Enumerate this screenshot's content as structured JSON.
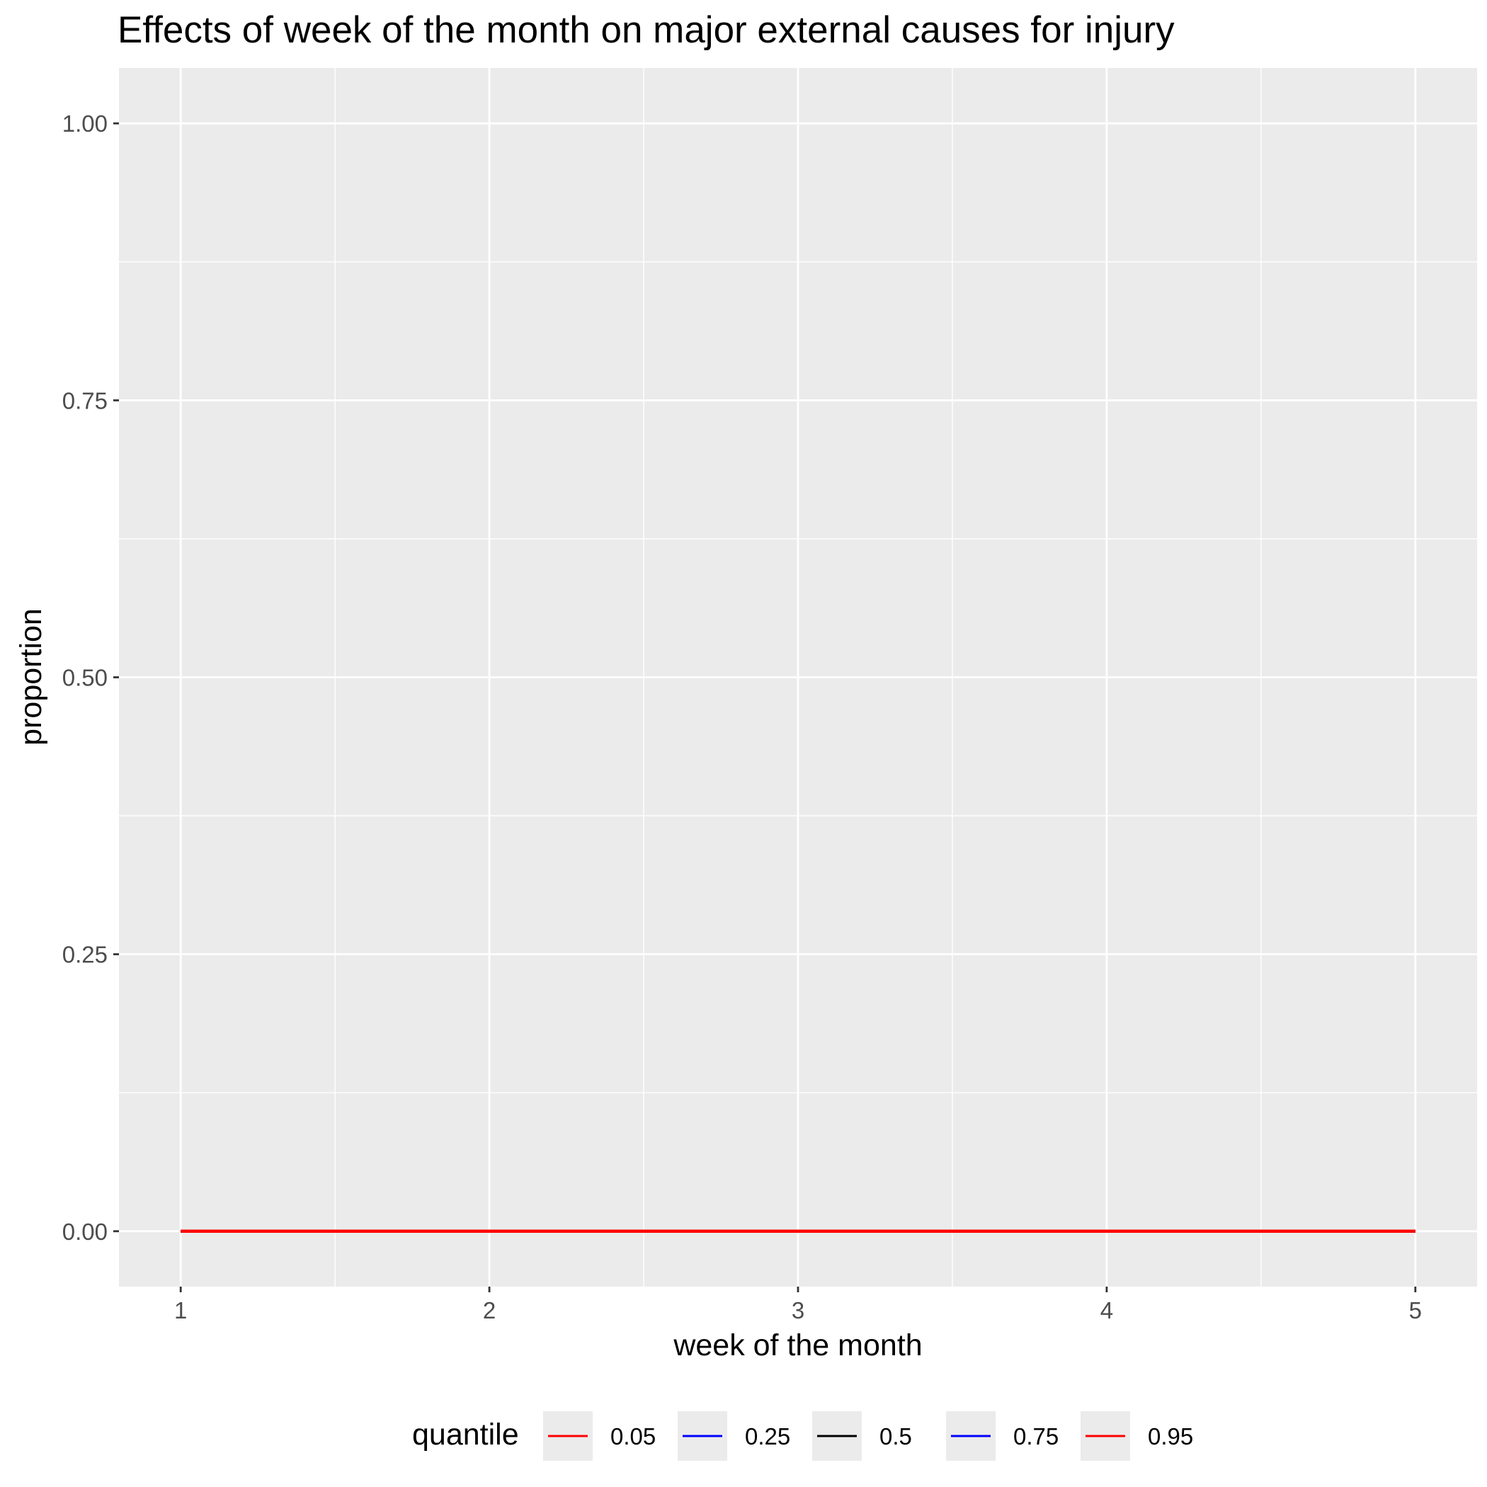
{
  "chart_data": {
    "type": "line",
    "title": "Effects of week of the month on major external causes for injury",
    "xlabel": "week of the month",
    "ylabel": "proportion",
    "x": [
      1,
      2,
      3,
      4,
      5
    ],
    "x_ticks": [
      "1",
      "2",
      "3",
      "4",
      "5"
    ],
    "y_ticks": [
      "0.00",
      "0.25",
      "0.50",
      "0.75",
      "1.00"
    ],
    "xlim": [
      0.8,
      5.2
    ],
    "ylim": [
      -0.05,
      1.05
    ],
    "grid": true,
    "legend": {
      "title": "quantile",
      "position": "bottom"
    },
    "series": [
      {
        "name": "0.05",
        "color": "#ff0000",
        "values": [
          0,
          0,
          0,
          0,
          0
        ]
      },
      {
        "name": "0.25",
        "color": "#0000ff",
        "values": [
          0,
          0,
          0,
          0,
          0
        ]
      },
      {
        "name": "0.5",
        "color": "#000000",
        "values": [
          0,
          0,
          0,
          0,
          0
        ]
      },
      {
        "name": "0.75",
        "color": "#0000ff",
        "values": [
          0,
          0,
          0,
          0,
          0
        ]
      },
      {
        "name": "0.95",
        "color": "#ff0000",
        "values": [
          0,
          0,
          0,
          0,
          0
        ]
      }
    ]
  }
}
